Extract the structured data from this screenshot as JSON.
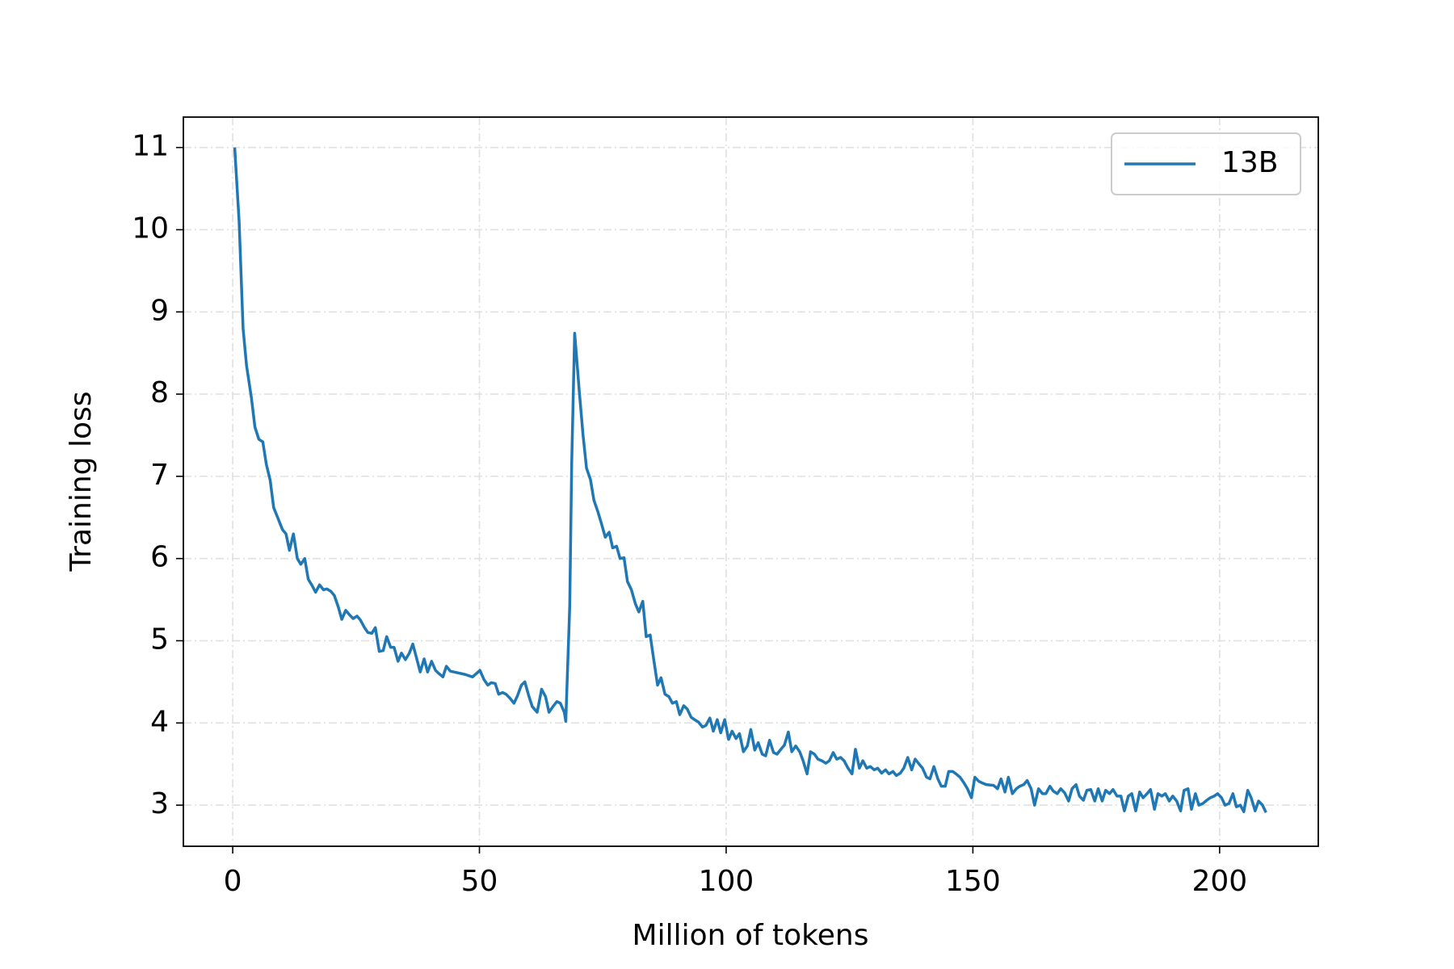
{
  "chart_data": {
    "type": "line",
    "xlabel": "Million of tokens",
    "ylabel": "Training loss",
    "xlim": [
      -10,
      220
    ],
    "ylim": [
      2.5,
      11.37
    ],
    "xticks": [
      0,
      50,
      100,
      150,
      200
    ],
    "yticks": [
      3,
      4,
      5,
      6,
      7,
      8,
      9,
      10,
      11
    ],
    "grid": true,
    "legend": "upper right",
    "x": [
      0.4,
      1.3,
      2.1,
      2.8,
      3.8,
      4.5,
      5.3,
      6.1,
      6.8,
      7.6,
      8.3,
      9.3,
      10.1,
      10.8,
      11.5,
      12.3,
      13.1,
      13.8,
      14.6,
      15.3,
      16.1,
      16.8,
      17.6,
      18.4,
      19.1,
      19.9,
      20.6,
      21.4,
      22.1,
      22.9,
      23.6,
      24.4,
      25.2,
      25.9,
      26.7,
      27.4,
      28.2,
      28.9,
      29.7,
      30.5,
      31.2,
      32.0,
      32.7,
      33.5,
      34.2,
      35.0,
      35.8,
      36.5,
      37.3,
      38.0,
      38.8,
      39.5,
      40.3,
      41.1,
      41.8,
      42.6,
      43.3,
      44.1,
      45.6,
      47.1,
      48.6,
      50.1,
      50.9,
      51.7,
      52.4,
      53.2,
      53.9,
      54.7,
      55.4,
      56.2,
      57.0,
      57.7,
      58.5,
      59.2,
      60.0,
      60.7,
      61.7,
      62.6,
      63.4,
      64.1,
      64.9,
      65.7,
      66.4,
      67.2,
      67.5,
      68.3,
      68.7,
      69.3,
      70.2,
      71.0,
      71.7,
      72.5,
      73.2,
      74.0,
      74.7,
      75.5,
      76.3,
      77.0,
      77.8,
      78.5,
      79.3,
      80.0,
      80.8,
      81.6,
      82.3,
      83.1,
      83.8,
      84.6,
      85.3,
      86.1,
      86.8,
      87.6,
      88.4,
      89.1,
      89.9,
      90.6,
      91.4,
      92.1,
      92.9,
      93.6,
      94.4,
      95.2,
      95.9,
      96.7,
      97.4,
      98.2,
      98.9,
      99.7,
      100.5,
      101.2,
      102.0,
      102.7,
      103.5,
      104.3,
      105.0,
      105.8,
      106.5,
      107.3,
      108.0,
      108.8,
      109.6,
      110.3,
      111.1,
      111.8,
      112.6,
      113.3,
      114.1,
      114.9,
      115.6,
      116.4,
      117.1,
      117.9,
      118.6,
      119.4,
      120.2,
      120.9,
      121.7,
      122.4,
      123.2,
      123.9,
      124.7,
      125.5,
      126.2,
      127.0,
      127.7,
      128.5,
      129.2,
      130.0,
      130.7,
      131.5,
      132.3,
      133.0,
      133.8,
      134.5,
      135.3,
      136.0,
      136.8,
      137.6,
      138.3,
      139.1,
      139.8,
      140.6,
      141.3,
      142.1,
      142.9,
      143.6,
      144.4,
      145.1,
      145.9,
      146.6,
      147.4,
      148.2,
      148.9,
      149.7,
      150.4,
      151.2,
      151.9,
      152.7,
      154.2,
      155.0,
      155.7,
      156.5,
      157.2,
      158.0,
      158.8,
      159.5,
      160.3,
      161.0,
      161.8,
      162.5,
      163.3,
      164.1,
      164.8,
      165.6,
      166.3,
      167.1,
      167.8,
      168.6,
      169.4,
      170.1,
      170.9,
      171.6,
      172.4,
      173.1,
      173.9,
      174.7,
      175.4,
      176.2,
      176.9,
      177.7,
      178.4,
      179.2,
      180.0,
      180.7,
      181.5,
      182.2,
      183.0,
      183.8,
      184.5,
      185.3,
      186.0,
      186.8,
      187.5,
      188.3,
      189.0,
      189.8,
      190.5,
      191.3,
      192.1,
      192.8,
      193.6,
      194.3,
      195.1,
      195.8,
      196.6,
      197.4,
      198.1,
      198.9,
      199.6,
      200.4,
      201.1,
      201.9,
      202.7,
      203.4,
      204.2,
      204.9,
      205.7,
      206.4,
      207.2,
      207.9,
      208.7,
      209.4
    ],
    "series": [
      {
        "name": "13B",
        "color": "#1f77b4",
        "values": [
          11.0,
          10.1,
          8.8,
          8.35,
          7.95,
          7.6,
          7.45,
          7.42,
          7.15,
          6.95,
          6.62,
          6.47,
          6.35,
          6.3,
          6.1,
          6.3,
          6.0,
          5.93,
          6.0,
          5.75,
          5.67,
          5.59,
          5.68,
          5.62,
          5.63,
          5.6,
          5.55,
          5.41,
          5.26,
          5.37,
          5.32,
          5.27,
          5.3,
          5.25,
          5.16,
          5.1,
          5.09,
          5.16,
          4.87,
          4.88,
          5.05,
          4.92,
          4.92,
          4.75,
          4.85,
          4.77,
          4.85,
          4.96,
          4.78,
          4.62,
          4.78,
          4.62,
          4.75,
          4.64,
          4.6,
          4.56,
          4.69,
          4.63,
          4.61,
          4.59,
          4.56,
          4.64,
          4.53,
          4.46,
          4.49,
          4.48,
          4.35,
          4.37,
          4.35,
          4.3,
          4.24,
          4.33,
          4.46,
          4.5,
          4.33,
          4.2,
          4.13,
          4.41,
          4.32,
          4.13,
          4.2,
          4.26,
          4.24,
          4.13,
          4.02,
          5.42,
          7.16,
          8.74,
          8.06,
          7.5,
          7.1,
          6.96,
          6.71,
          6.57,
          6.43,
          6.26,
          6.32,
          6.13,
          6.15,
          6.0,
          6.01,
          5.72,
          5.62,
          5.45,
          5.35,
          5.48,
          5.05,
          5.07,
          4.78,
          4.46,
          4.55,
          4.35,
          4.32,
          4.24,
          4.26,
          4.1,
          4.21,
          4.17,
          4.07,
          4.04,
          4.01,
          3.95,
          3.97,
          4.06,
          3.9,
          4.04,
          3.88,
          4.04,
          3.8,
          3.9,
          3.81,
          3.87,
          3.65,
          3.72,
          3.92,
          3.67,
          3.76,
          3.62,
          3.6,
          3.79,
          3.64,
          3.62,
          3.68,
          3.73,
          3.89,
          3.65,
          3.72,
          3.65,
          3.54,
          3.38,
          3.65,
          3.62,
          3.56,
          3.54,
          3.51,
          3.54,
          3.64,
          3.56,
          3.58,
          3.54,
          3.45,
          3.38,
          3.68,
          3.45,
          3.54,
          3.45,
          3.47,
          3.43,
          3.45,
          3.39,
          3.43,
          3.38,
          3.41,
          3.36,
          3.39,
          3.45,
          3.58,
          3.43,
          3.56,
          3.5,
          3.45,
          3.34,
          3.32,
          3.47,
          3.32,
          3.23,
          3.23,
          3.41,
          3.41,
          3.38,
          3.34,
          3.27,
          3.2,
          3.09,
          3.34,
          3.29,
          3.27,
          3.25,
          3.24,
          3.2,
          3.32,
          3.16,
          3.34,
          3.14,
          3.2,
          3.23,
          3.25,
          3.3,
          3.2,
          3.0,
          3.2,
          3.14,
          3.14,
          3.23,
          3.17,
          3.14,
          3.2,
          3.15,
          3.05,
          3.2,
          3.25,
          3.11,
          3.06,
          3.18,
          3.19,
          3.05,
          3.2,
          3.05,
          3.18,
          3.14,
          3.19,
          3.11,
          3.11,
          2.93,
          3.11,
          3.14,
          2.93,
          3.16,
          3.09,
          3.14,
          3.19,
          2.95,
          3.14,
          3.11,
          3.14,
          3.05,
          3.11,
          3.05,
          2.93,
          3.18,
          3.2,
          2.95,
          3.14,
          3.0,
          3.02,
          3.06,
          3.09,
          3.11,
          3.14,
          3.09,
          3.0,
          3.02,
          3.14,
          2.98,
          3.0,
          2.92,
          3.18,
          3.09,
          2.93,
          3.05,
          3.0,
          2.91
        ]
      }
    ]
  }
}
